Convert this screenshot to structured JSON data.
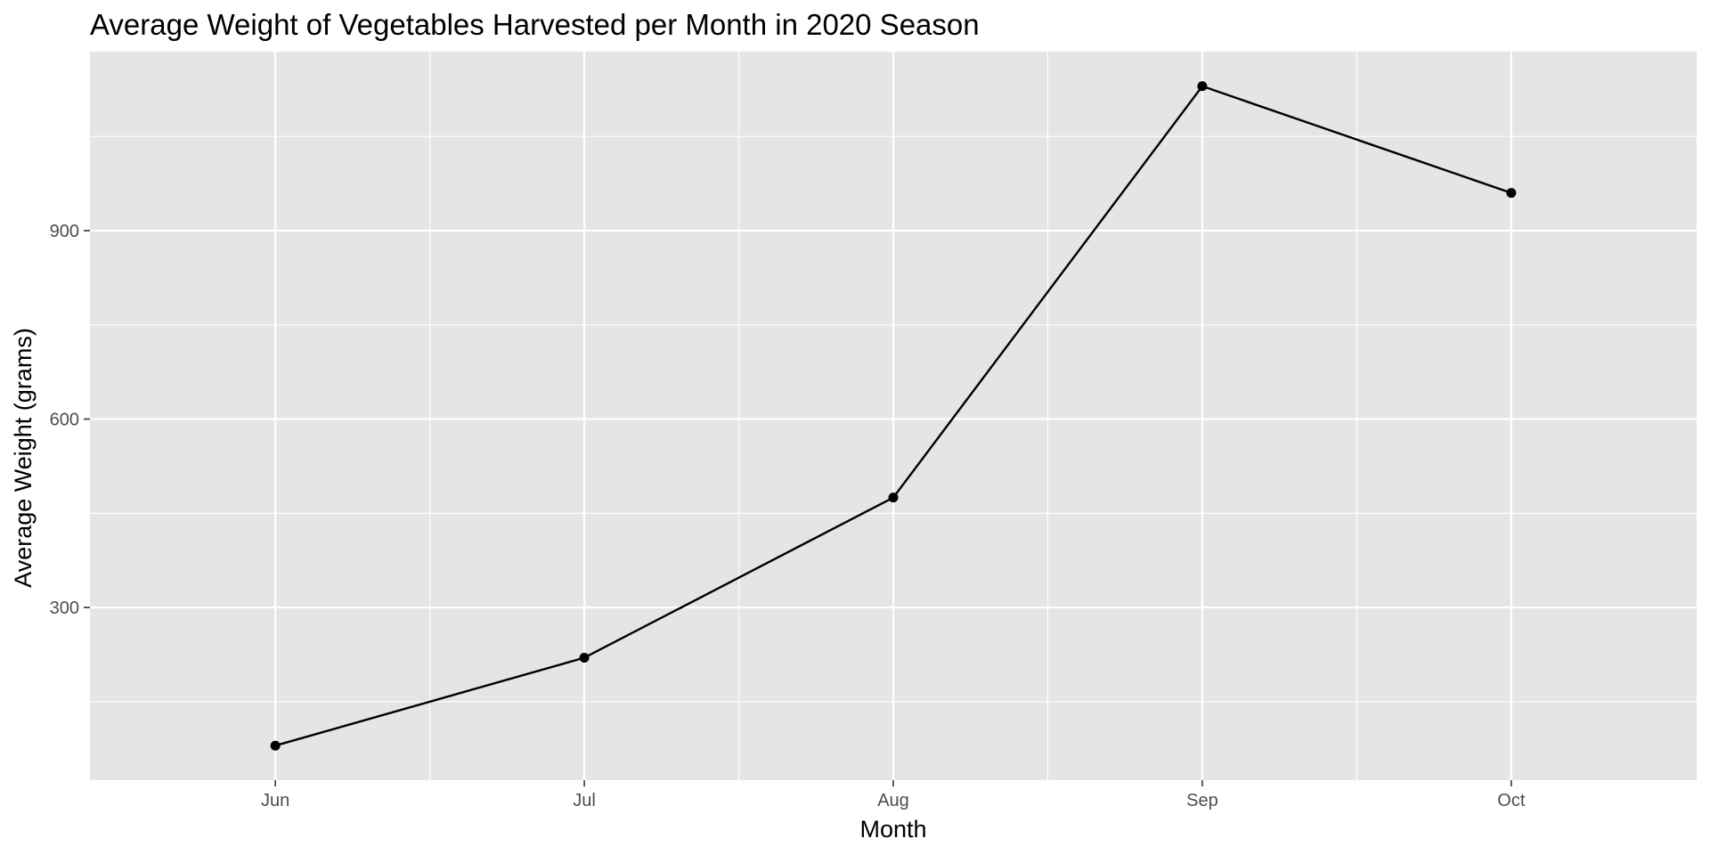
{
  "chart_data": {
    "type": "line",
    "title": "Average Weight of Vegetables Harvested per Month in 2020 Season",
    "xlabel": "Month",
    "ylabel": "Average Weight (grams)",
    "categories": [
      "Jun",
      "Jul",
      "Aug",
      "Sep",
      "Oct"
    ],
    "values": [
      80,
      220,
      475,
      1130,
      960
    ],
    "y_ticks": [
      300,
      600,
      900
    ],
    "ylim": [
      25,
      1185
    ],
    "grid": true,
    "legend": "none",
    "colors": {
      "panel_background": "#e5e5e5",
      "grid": "#ffffff",
      "line": "#000000",
      "point": "#000000",
      "tick_text": "#4d4d4d",
      "tick_mark": "#333333"
    }
  }
}
